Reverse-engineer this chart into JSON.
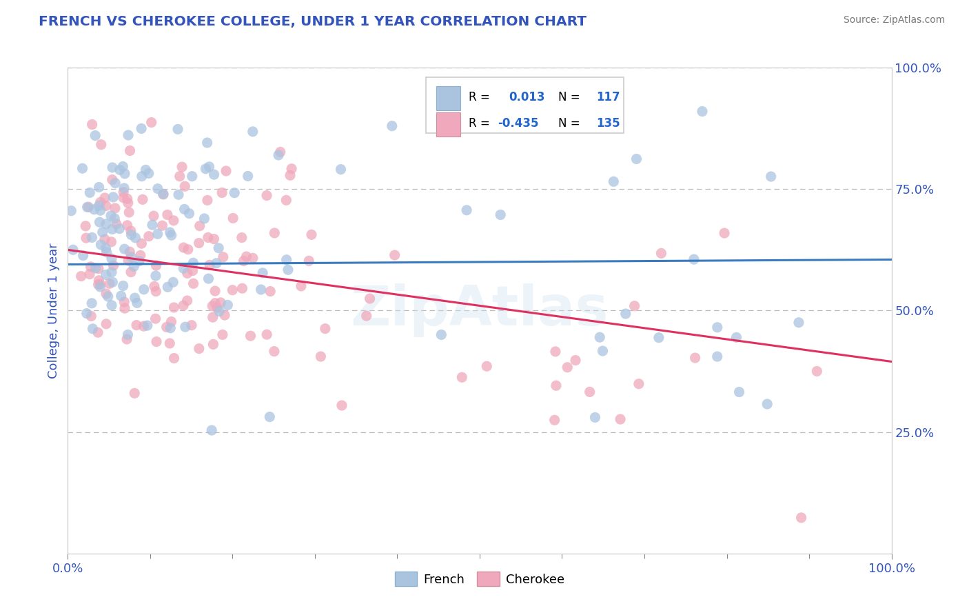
{
  "title": "FRENCH VS CHEROKEE COLLEGE, UNDER 1 YEAR CORRELATION CHART",
  "source": "Source: ZipAtlas.com",
  "ylabel": "College, Under 1 year",
  "xlim": [
    0.0,
    1.0
  ],
  "ylim": [
    0.0,
    1.0
  ],
  "french_R": 0.013,
  "french_N": 117,
  "cherokee_R": -0.435,
  "cherokee_N": 135,
  "french_color": "#aac4e0",
  "cherokee_color": "#f0a8bc",
  "french_line_color": "#3a7abf",
  "cherokee_line_color": "#e03060",
  "legend_color": "#2266cc",
  "title_color": "#3355bb",
  "source_color": "#777777",
  "axis_label_color": "#3355bb",
  "tick_color": "#3355bb",
  "watermark": "ZipAtlas",
  "background_color": "#ffffff",
  "dashed_line_color": "#bbbbbb",
  "french_line_y0": 0.595,
  "french_line_y1": 0.605,
  "cherokee_line_y0": 0.625,
  "cherokee_line_y1": 0.395
}
